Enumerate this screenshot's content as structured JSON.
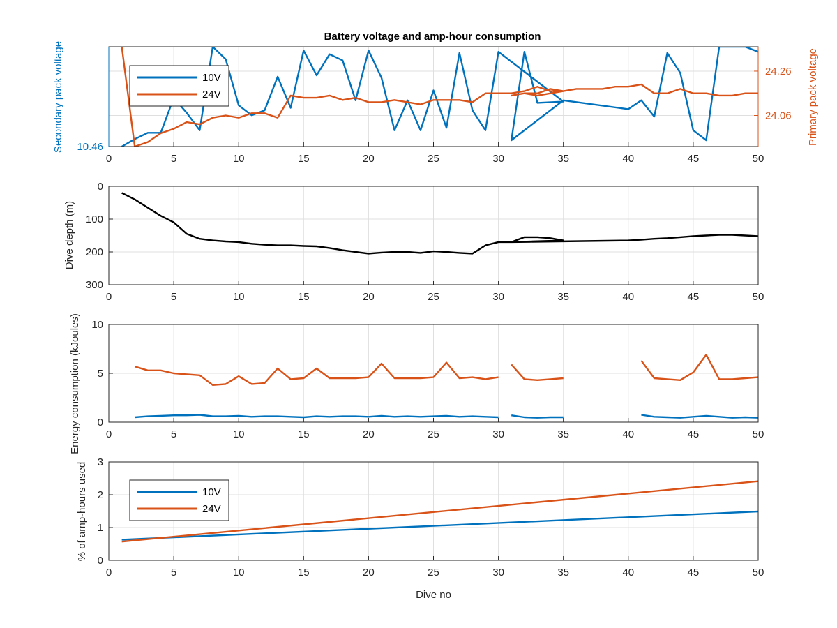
{
  "figure_title": "Battery voltage and amp-hour consumption",
  "colors": {
    "s10v": "#0072BD",
    "s24v": "#D95319",
    "depth": "#000000",
    "grid": "#dfdfdf",
    "axis": "#262626"
  },
  "chart_data": [
    {
      "type": "line",
      "title": "Battery voltage and amp-hour consumption",
      "xlabel": "",
      "ylabel_left": "Secondary pack voltage",
      "ylabel_right": "Primary pack voltage",
      "xlim": [
        0,
        50
      ],
      "xticks": [
        0,
        5,
        10,
        15,
        20,
        25,
        30,
        35,
        40,
        45,
        50
      ],
      "yticks_left": [
        10.46
      ],
      "yticks_left_labels": [
        "10.46"
      ],
      "ylim_left": [
        10.46,
        10.56
      ],
      "yticks_right": [
        24.06,
        24.26
      ],
      "yticks_right_labels": [
        "24.06",
        "24.26"
      ],
      "ylim_right": [
        23.92,
        24.37
      ],
      "legend": {
        "location": "top-left",
        "entries": [
          "10V",
          "24V"
        ]
      },
      "grid": true,
      "series": [
        {
          "name": "10V",
          "axis": "left",
          "x": [
            1,
            2,
            3,
            4,
            5,
            6,
            7,
            8,
            9,
            10,
            11,
            12,
            13,
            14,
            15,
            16,
            17,
            18,
            19,
            20,
            21,
            22,
            23,
            24,
            25,
            26,
            27,
            28,
            29,
            30,
            35,
            33,
            32,
            31,
            35,
            40,
            41,
            42,
            43,
            44,
            45,
            46,
            47,
            48,
            49,
            50
          ],
          "y": [
            10.46,
            10.4675,
            10.4738,
            10.4738,
            10.5088,
            10.4938,
            10.4763,
            10.56,
            10.5475,
            10.5013,
            10.4913,
            10.4963,
            10.53,
            10.4988,
            10.5563,
            10.5313,
            10.5525,
            10.5463,
            10.5063,
            10.5563,
            10.5288,
            10.4763,
            10.5063,
            10.4763,
            10.5163,
            10.4788,
            10.5538,
            10.4963,
            10.4763,
            10.555,
            10.505,
            10.5038,
            10.555,
            10.4663,
            10.5063,
            10.4975,
            10.5063,
            10.49,
            10.5538,
            10.5338,
            10.4763,
            10.4663,
            10.56,
            10.56,
            10.56,
            10.555
          ]
        },
        {
          "name": "24V",
          "axis": "right",
          "x": [
            1,
            2,
            3,
            4,
            5,
            6,
            7,
            8,
            9,
            10,
            11,
            12,
            13,
            14,
            15,
            16,
            17,
            18,
            19,
            20,
            21,
            22,
            23,
            24,
            25,
            26,
            27,
            28,
            29,
            30,
            31,
            32,
            33,
            34,
            35,
            33,
            32,
            31,
            32,
            33,
            34,
            35,
            36,
            37,
            38,
            39,
            40,
            41,
            42,
            43,
            44,
            45,
            46,
            47,
            48,
            49,
            50
          ],
          "y": [
            24.37,
            23.92,
            23.94,
            23.98,
            24.0,
            24.03,
            24.02,
            24.05,
            24.06,
            24.05,
            24.07,
            24.07,
            24.05,
            24.15,
            24.14,
            24.14,
            24.15,
            24.13,
            24.14,
            24.12,
            24.12,
            24.13,
            24.12,
            24.11,
            24.13,
            24.13,
            24.13,
            24.12,
            24.16,
            24.16,
            24.16,
            24.17,
            24.19,
            24.17,
            24.17,
            24.15,
            24.16,
            24.15,
            24.16,
            24.16,
            24.18,
            24.17,
            24.18,
            24.18,
            24.18,
            24.19,
            24.19,
            24.2,
            24.16,
            24.16,
            24.18,
            24.16,
            24.16,
            24.15,
            24.15,
            24.16,
            24.16
          ]
        }
      ]
    },
    {
      "type": "line",
      "title": "",
      "xlabel": "",
      "ylabel": "Dive depth (m)",
      "xlim": [
        0,
        50
      ],
      "ylim": [
        0,
        300
      ],
      "y_reversed": true,
      "xticks": [
        0,
        5,
        10,
        15,
        20,
        25,
        30,
        35,
        40,
        45,
        50
      ],
      "yticks": [
        0,
        100,
        200,
        300
      ],
      "grid": true,
      "series": [
        {
          "x": [
            1,
            2,
            3,
            4,
            5,
            6,
            7,
            8,
            9,
            10,
            11,
            12,
            13,
            14,
            15,
            16,
            17,
            18,
            19,
            20,
            21,
            22,
            23,
            24,
            25,
            26,
            27,
            28,
            29,
            30,
            31,
            32,
            33,
            34,
            35,
            31,
            40,
            41,
            42,
            43,
            44,
            45,
            46,
            47,
            48,
            49,
            50
          ],
          "y": [
            20,
            40,
            65,
            90,
            110,
            145,
            160,
            165,
            168,
            170,
            175,
            178,
            180,
            180,
            182,
            183,
            188,
            195,
            200,
            205,
            202,
            200,
            200,
            203,
            198,
            200,
            203,
            205,
            180,
            170,
            170,
            155,
            155,
            158,
            165,
            170,
            165,
            163,
            160,
            158,
            155,
            152,
            150,
            148,
            148,
            150,
            152
          ]
        }
      ]
    },
    {
      "type": "line",
      "title": "",
      "xlabel": "",
      "ylabel": "Energy consumption (kJoules)",
      "xlim": [
        0,
        50
      ],
      "ylim": [
        0,
        10
      ],
      "xticks": [
        0,
        5,
        10,
        15,
        20,
        25,
        30,
        35,
        40,
        45,
        50
      ],
      "yticks": [
        0,
        5,
        10
      ],
      "grid": true,
      "series": [
        {
          "name": "10V",
          "segments": [
            {
              "x": [
                2,
                3,
                4,
                5,
                6,
                7,
                8,
                9,
                10,
                11,
                12,
                13,
                14,
                15,
                16,
                17,
                18,
                19,
                20,
                21,
                22,
                23,
                24,
                25,
                26,
                27,
                28,
                29,
                30
              ],
              "y": [
                0.5,
                0.6,
                0.65,
                0.7,
                0.7,
                0.75,
                0.6,
                0.6,
                0.65,
                0.55,
                0.6,
                0.6,
                0.55,
                0.5,
                0.6,
                0.55,
                0.6,
                0.6,
                0.55,
                0.65,
                0.55,
                0.6,
                0.55,
                0.6,
                0.65,
                0.55,
                0.6,
                0.55,
                0.5
              ]
            },
            {
              "x": [
                31,
                32,
                33,
                34,
                35
              ],
              "y": [
                0.7,
                0.5,
                0.45,
                0.5,
                0.5
              ]
            },
            {
              "x": [
                41,
                42,
                43,
                44,
                45,
                46,
                47,
                48,
                49,
                50
              ],
              "y": [
                0.75,
                0.55,
                0.5,
                0.45,
                0.55,
                0.65,
                0.55,
                0.45,
                0.5,
                0.45
              ]
            }
          ]
        },
        {
          "name": "24V",
          "segments": [
            {
              "x": [
                2,
                3,
                4,
                5,
                6,
                7,
                8,
                9,
                10,
                11,
                12,
                13,
                14,
                15,
                16,
                17,
                18,
                19,
                20,
                21,
                22,
                23,
                24,
                25,
                26,
                27,
                28,
                29,
                30
              ],
              "y": [
                5.7,
                5.3,
                5.3,
                5.0,
                4.9,
                4.8,
                3.8,
                3.9,
                4.7,
                3.9,
                4.0,
                5.5,
                4.4,
                4.5,
                5.5,
                4.5,
                4.5,
                4.5,
                4.6,
                6.0,
                4.5,
                4.5,
                4.5,
                4.6,
                6.1,
                4.5,
                4.6,
                4.4,
                4.6
              ]
            },
            {
              "x": [
                31,
                32,
                33,
                34,
                35
              ],
              "y": [
                5.9,
                4.4,
                4.3,
                4.4,
                4.5
              ]
            },
            {
              "x": [
                41,
                42,
                43,
                44,
                45,
                46,
                47,
                48,
                49,
                50
              ],
              "y": [
                6.3,
                4.5,
                4.4,
                4.3,
                5.1,
                6.9,
                4.4,
                4.4,
                4.5,
                4.6
              ]
            }
          ]
        }
      ]
    },
    {
      "type": "line",
      "title": "",
      "xlabel": "Dive no",
      "ylabel": "% of amp-hours used",
      "xlim": [
        0,
        50
      ],
      "ylim": [
        0,
        3
      ],
      "xticks": [
        0,
        5,
        10,
        15,
        20,
        25,
        30,
        35,
        40,
        45,
        50
      ],
      "yticks": [
        0,
        1,
        2,
        3
      ],
      "legend": {
        "location": "top-left",
        "entries": [
          "10V",
          "24V"
        ]
      },
      "grid": true,
      "series": [
        {
          "name": "10V",
          "x": [
            1,
            50
          ],
          "y": [
            0.63,
            1.49
          ]
        },
        {
          "name": "24V",
          "x": [
            1,
            50
          ],
          "y": [
            0.57,
            2.41
          ]
        }
      ]
    }
  ]
}
